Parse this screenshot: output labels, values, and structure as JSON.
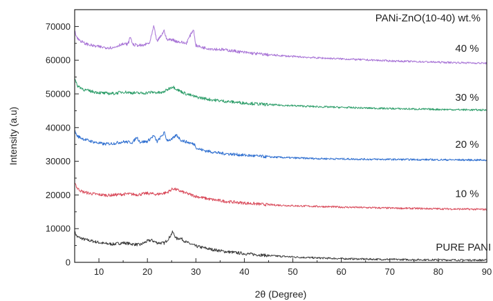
{
  "chart_data": {
    "type": "line",
    "title": "PANi-ZnO(10-40) wt.%",
    "xlabel": "2θ (Degree)",
    "ylabel": "Intensity (a.u)",
    "xlim": [
      5,
      90
    ],
    "ylim": [
      0,
      75000
    ],
    "xticks": [
      10,
      20,
      30,
      40,
      50,
      60,
      70,
      80,
      90
    ],
    "yticks": [
      0,
      10000,
      20000,
      30000,
      40000,
      50000,
      60000,
      70000
    ],
    "grid": false,
    "series": [
      {
        "name": "PURE PANI",
        "color": "#3a3a3a",
        "points": [
          [
            5,
            9000
          ],
          [
            5.5,
            7600
          ],
          [
            7,
            6800
          ],
          [
            9,
            6200
          ],
          [
            11,
            5600
          ],
          [
            13,
            5400
          ],
          [
            15,
            5800
          ],
          [
            17,
            5400
          ],
          [
            18.5,
            5200
          ],
          [
            20,
            6300
          ],
          [
            20.8,
            6600
          ],
          [
            22,
            5800
          ],
          [
            23.5,
            5700
          ],
          [
            24.5,
            7300
          ],
          [
            25.2,
            9000
          ],
          [
            26,
            7000
          ],
          [
            26.8,
            7200
          ],
          [
            28,
            6000
          ],
          [
            30,
            4800
          ],
          [
            33,
            3900
          ],
          [
            36,
            3200
          ],
          [
            40,
            2600
          ],
          [
            45,
            2000
          ],
          [
            50,
            1600
          ],
          [
            55,
            1300
          ],
          [
            60,
            1100
          ],
          [
            65,
            950
          ],
          [
            70,
            850
          ],
          [
            75,
            780
          ],
          [
            80,
            720
          ],
          [
            85,
            680
          ],
          [
            90,
            640
          ]
        ]
      },
      {
        "name": "10 %",
        "color": "#d94b5b",
        "points": [
          [
            5,
            24000
          ],
          [
            5.5,
            22000
          ],
          [
            6.5,
            21000
          ],
          [
            8,
            20500
          ],
          [
            10,
            20100
          ],
          [
            12,
            19900
          ],
          [
            14,
            20100
          ],
          [
            16,
            20300
          ],
          [
            18,
            20100
          ],
          [
            20,
            20500
          ],
          [
            22,
            20200
          ],
          [
            24,
            20700
          ],
          [
            25.3,
            21900
          ],
          [
            26.5,
            21300
          ],
          [
            28,
            20500
          ],
          [
            30,
            19600
          ],
          [
            33,
            18700
          ],
          [
            36,
            18100
          ],
          [
            40,
            17600
          ],
          [
            45,
            17100
          ],
          [
            50,
            16800
          ],
          [
            55,
            16600
          ],
          [
            60,
            16400
          ],
          [
            65,
            16250
          ],
          [
            70,
            16100
          ],
          [
            75,
            16000
          ],
          [
            80,
            15900
          ],
          [
            85,
            15800
          ],
          [
            90,
            15700
          ]
        ]
      },
      {
        "name": "20 %",
        "color": "#2f6fd0",
        "points": [
          [
            5,
            39000
          ],
          [
            5.5,
            37500
          ],
          [
            7,
            36500
          ],
          [
            9,
            35700
          ],
          [
            11,
            35100
          ],
          [
            13,
            35300
          ],
          [
            15,
            35800
          ],
          [
            17,
            35600
          ],
          [
            17.8,
            37200
          ],
          [
            18.5,
            35700
          ],
          [
            20,
            35900
          ],
          [
            21.3,
            37600
          ],
          [
            22,
            35800
          ],
          [
            23.5,
            38500
          ],
          [
            24,
            36300
          ],
          [
            25,
            36400
          ],
          [
            26,
            37800
          ],
          [
            27,
            36200
          ],
          [
            29.8,
            35000
          ],
          [
            30.2,
            33800
          ],
          [
            32,
            33100
          ],
          [
            35,
            32400
          ],
          [
            40,
            31800
          ],
          [
            45,
            31300
          ],
          [
            50,
            31000
          ],
          [
            55,
            30800
          ],
          [
            60,
            30700
          ],
          [
            65,
            30600
          ],
          [
            70,
            30550
          ],
          [
            75,
            30500
          ],
          [
            80,
            30450
          ],
          [
            85,
            30400
          ],
          [
            90,
            30350
          ]
        ]
      },
      {
        "name": "30 %",
        "color": "#2e9e6a",
        "points": [
          [
            5,
            54500
          ],
          [
            5.5,
            52500
          ],
          [
            7,
            51200
          ],
          [
            9,
            50600
          ],
          [
            11,
            50200
          ],
          [
            13,
            50100
          ],
          [
            15,
            50600
          ],
          [
            17,
            50300
          ],
          [
            19,
            50200
          ],
          [
            21,
            50500
          ],
          [
            23,
            50300
          ],
          [
            24.5,
            51600
          ],
          [
            25.2,
            52200
          ],
          [
            26.5,
            51000
          ],
          [
            28,
            50000
          ],
          [
            30,
            49100
          ],
          [
            33,
            48300
          ],
          [
            36,
            47800
          ],
          [
            40,
            47300
          ],
          [
            45,
            46800
          ],
          [
            50,
            46500
          ],
          [
            55,
            46200
          ],
          [
            60,
            46000
          ],
          [
            65,
            45800
          ],
          [
            70,
            45650
          ],
          [
            75,
            45500
          ],
          [
            80,
            45400
          ],
          [
            85,
            45300
          ],
          [
            90,
            45200
          ]
        ]
      },
      {
        "name": "40 %",
        "color": "#a874d6",
        "points": [
          [
            5,
            69000
          ],
          [
            5.5,
            66500
          ],
          [
            7,
            65000
          ],
          [
            9,
            64200
          ],
          [
            11,
            63800
          ],
          [
            13,
            63700
          ],
          [
            14.5,
            64700
          ],
          [
            16,
            64800
          ],
          [
            16.5,
            67000
          ],
          [
            17,
            64600
          ],
          [
            19,
            64300
          ],
          [
            20.5,
            65200
          ],
          [
            21.3,
            70000
          ],
          [
            22,
            65500
          ],
          [
            23.5,
            68800
          ],
          [
            24,
            66000
          ],
          [
            25,
            66200
          ],
          [
            26,
            65600
          ],
          [
            28,
            65000
          ],
          [
            29.5,
            69200
          ],
          [
            30,
            64400
          ],
          [
            31,
            63900
          ],
          [
            33,
            63400
          ],
          [
            35,
            63200
          ],
          [
            37,
            62900
          ],
          [
            40,
            62300
          ],
          [
            45,
            61600
          ],
          [
            50,
            61100
          ],
          [
            55,
            60700
          ],
          [
            60,
            60400
          ],
          [
            65,
            60100
          ],
          [
            70,
            59800
          ],
          [
            75,
            59600
          ],
          [
            80,
            59400
          ],
          [
            85,
            59250
          ],
          [
            90,
            59100
          ]
        ]
      }
    ],
    "series_label_positions": [
      {
        "name": "PURE PANI",
        "x": 79.5,
        "y": 3500
      },
      {
        "name": "10 %",
        "x": 83.5,
        "y": 19400
      },
      {
        "name": "20 %",
        "x": 83.5,
        "y": 34000
      },
      {
        "name": "30 %",
        "x": 83.5,
        "y": 48000
      },
      {
        "name": "40 %",
        "x": 83.5,
        "y": 62500
      }
    ]
  }
}
